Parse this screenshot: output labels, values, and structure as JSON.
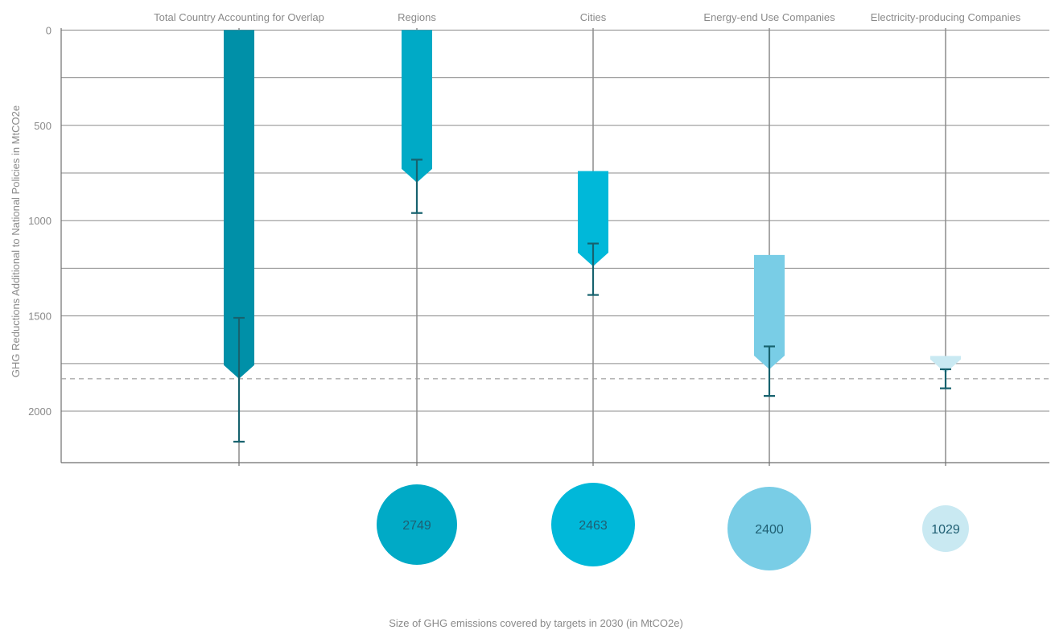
{
  "chart_data": {
    "type": "bar",
    "title": "",
    "xlabel": "Size of GHG emissions covered by targets in 2030 (in MtCO2e)",
    "ylabel": "GHG Reductions Additional to National Policies in MtCO2e",
    "y_axis_inverted": true,
    "ylim": [
      -10,
      2270
    ],
    "yticks": [
      0,
      500,
      1000,
      1500,
      2000
    ],
    "grid": true,
    "reference_line": {
      "value": 1830,
      "style": "dashed"
    },
    "categories": [
      "Total Country Accounting for Overlap",
      "Regions",
      "Cities",
      "Energy-end Use Companies",
      "Electricity-producing Companies"
    ],
    "bars": [
      {
        "start": 0,
        "end": 1830,
        "error_low": 1510,
        "error_high": 2160,
        "color": "#0090a8"
      },
      {
        "start": 0,
        "end": 800,
        "error_low": 680,
        "error_high": 960,
        "color": "#00aac6"
      },
      {
        "start": 740,
        "end": 1240,
        "error_low": 1120,
        "error_high": 1390,
        "color": "#00b8d9"
      },
      {
        "start": 1180,
        "end": 1780,
        "error_low": 1660,
        "error_high": 1920,
        "color": "#79cde6"
      },
      {
        "start": 1710,
        "end": 1800,
        "error_low": 1780,
        "error_high": 1880,
        "color": "#c9e9f2"
      }
    ],
    "bubbles": [
      {
        "category": "Regions",
        "value": "2749",
        "color": "#00aac6"
      },
      {
        "category": "Cities",
        "value": "2463",
        "color": "#00b8d9"
      },
      {
        "category": "Energy-end Use Companies",
        "value": "2400",
        "color": "#79cde6"
      },
      {
        "category": "Electricity-producing Companies",
        "value": "1029",
        "color": "#c9e9f2"
      }
    ]
  }
}
